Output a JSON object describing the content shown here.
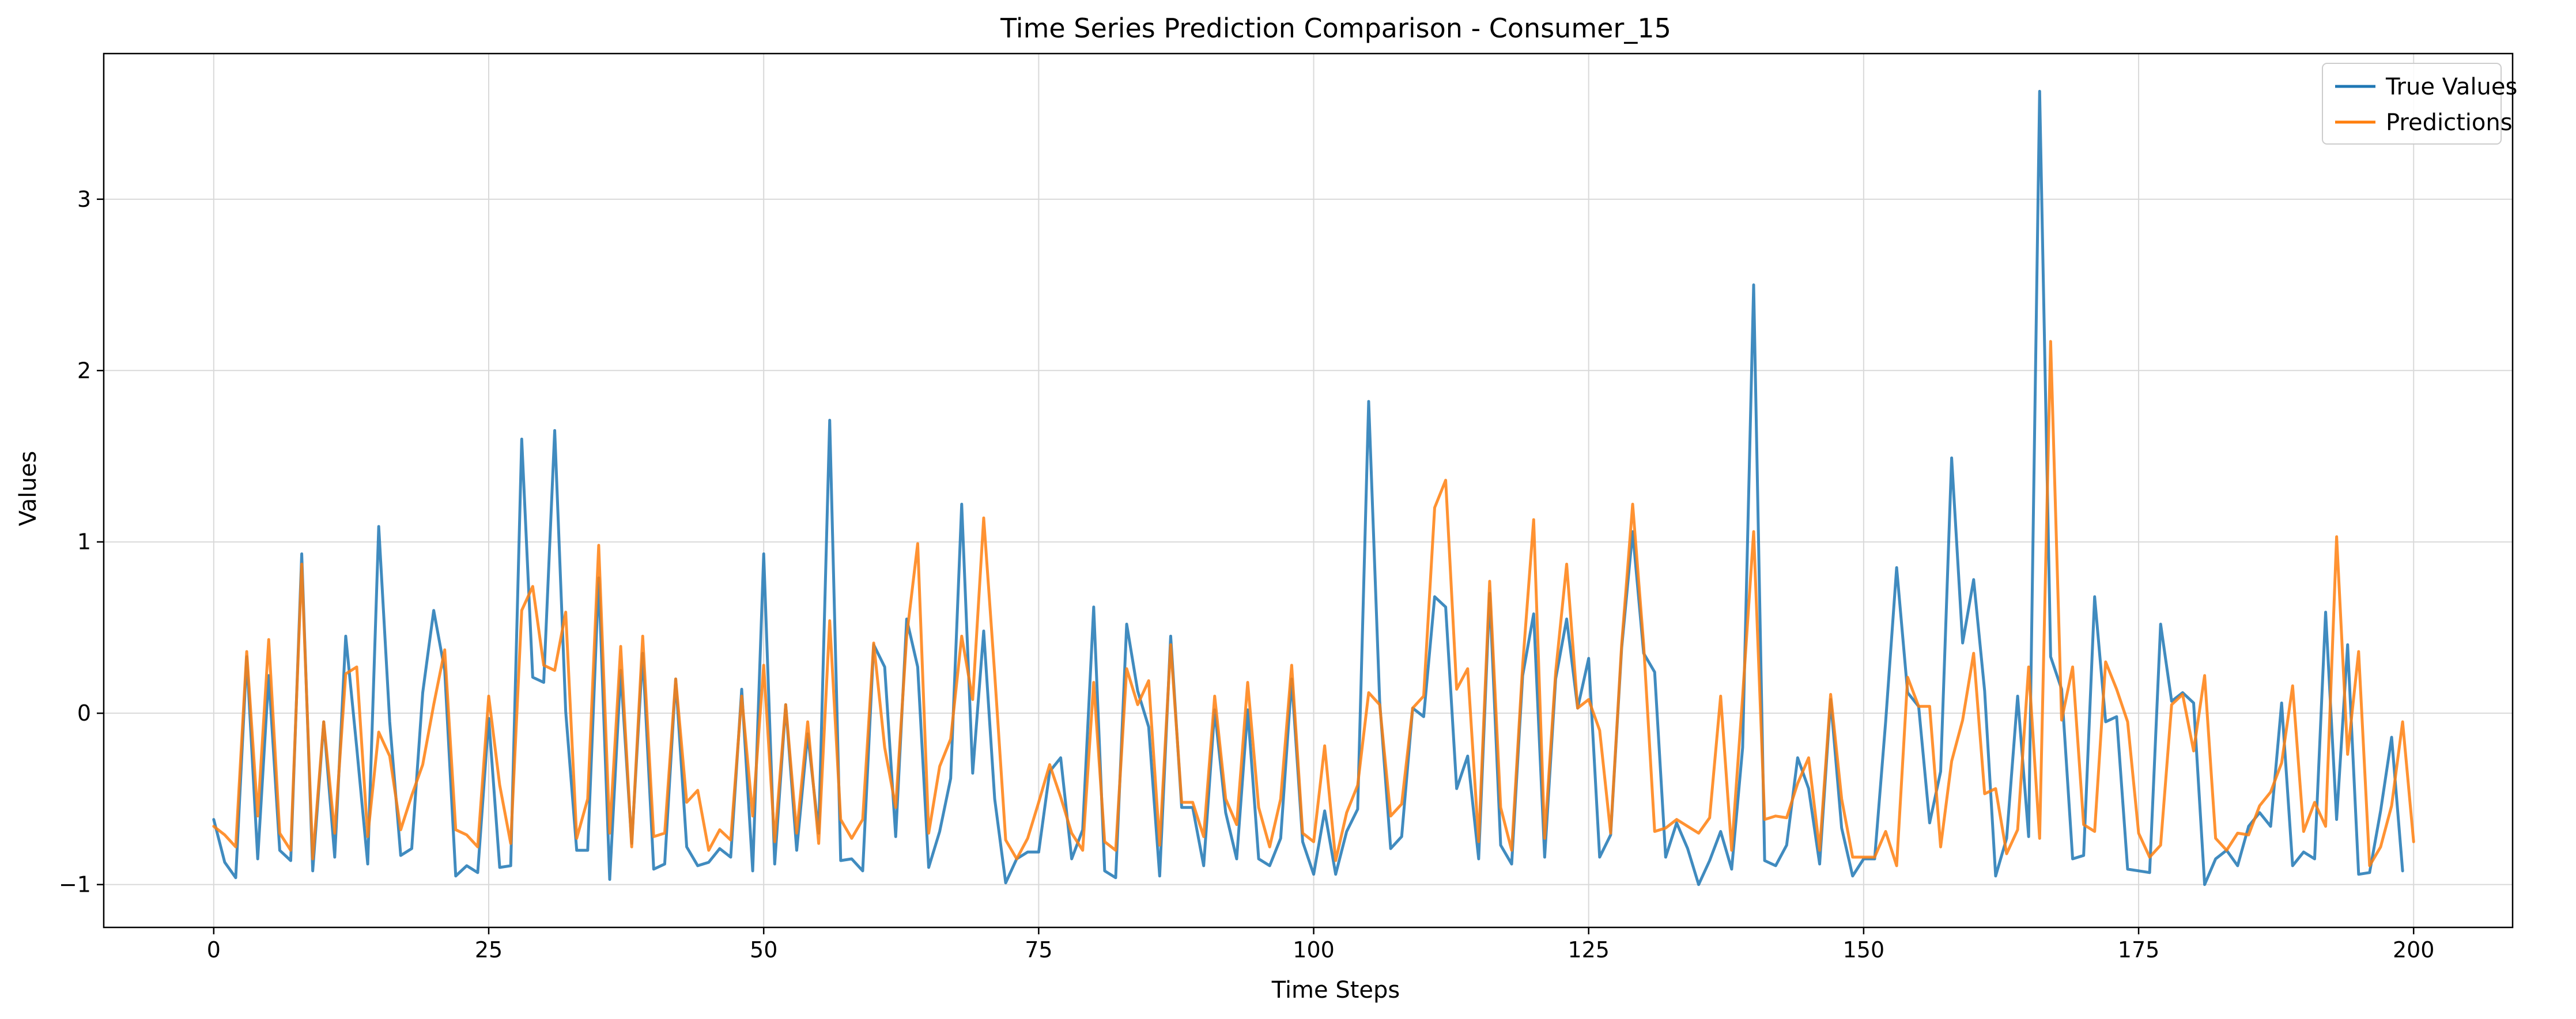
{
  "chart_data": {
    "type": "line",
    "title": "Time Series Prediction Comparison - Consumer_15",
    "xlabel": "Time Steps",
    "ylabel": "Values",
    "xlim": [
      -10,
      209
    ],
    "ylim": [
      -1.25,
      3.85
    ],
    "xticks": [
      0,
      25,
      50,
      75,
      100,
      125,
      150,
      175,
      200
    ],
    "yticks": [
      -1,
      0,
      1,
      2,
      3
    ],
    "grid": true,
    "legend_position": "top-right",
    "series": [
      {
        "name": "True Values",
        "color": "#1f77b4",
        "values": [
          -0.62,
          -0.87,
          -0.96,
          0.33,
          -0.85,
          0.22,
          -0.8,
          -0.86,
          0.93,
          -0.92,
          -0.05,
          -0.84,
          0.45,
          -0.2,
          -0.88,
          1.09,
          -0.05,
          -0.83,
          -0.79,
          0.12,
          0.6,
          0.25,
          -0.95,
          -0.89,
          -0.93,
          -0.03,
          -0.9,
          -0.89,
          1.6,
          0.21,
          0.18,
          1.65,
          0.01,
          -0.8,
          -0.8,
          0.79,
          -0.97,
          0.25,
          -0.76,
          0.35,
          -0.91,
          -0.88,
          0.2,
          -0.78,
          -0.89,
          -0.87,
          -0.79,
          -0.84,
          0.14,
          -0.92,
          0.93,
          -0.88,
          0.05,
          -0.8,
          -0.12,
          -0.7,
          1.71,
          -0.86,
          -0.85,
          -0.92,
          0.4,
          0.27,
          -0.72,
          0.55,
          0.27,
          -0.9,
          -0.69,
          -0.38,
          1.22,
          -0.35,
          0.48,
          -0.5,
          -0.99,
          -0.85,
          -0.81,
          -0.81,
          -0.34,
          -0.26,
          -0.85,
          -0.68,
          0.62,
          -0.92,
          -0.96,
          0.52,
          0.13,
          -0.08,
          -0.95,
          0.45,
          -0.55,
          -0.55,
          -0.89,
          0.02,
          -0.58,
          -0.85,
          0.02,
          -0.85,
          -0.89,
          -0.73,
          0.2,
          -0.75,
          -0.94,
          -0.57,
          -0.94,
          -0.69,
          -0.56,
          1.82,
          0.07,
          -0.79,
          -0.72,
          0.03,
          -0.02,
          0.68,
          0.62,
          -0.44,
          -0.25,
          -0.85,
          0.7,
          -0.77,
          -0.88,
          0.22,
          0.58,
          -0.84,
          0.2,
          0.55,
          0.03,
          0.32,
          -0.84,
          -0.71,
          0.38,
          1.06,
          0.35,
          0.24,
          -0.84,
          -0.64,
          -0.79,
          -1.0,
          -0.86,
          -0.69,
          -0.91,
          -0.2,
          2.5,
          -0.86,
          -0.89,
          -0.77,
          -0.26,
          -0.44,
          -0.88,
          0.08,
          -0.67,
          -0.95,
          -0.85,
          -0.85,
          -0.05,
          0.85,
          0.12,
          0.04,
          -0.64,
          -0.34,
          1.49,
          0.41,
          0.78,
          0.13,
          -0.95,
          -0.73,
          0.1,
          -0.72,
          3.63,
          0.33,
          0.14,
          -0.85,
          -0.83,
          0.68,
          -0.05,
          -0.02,
          -0.91,
          -0.92,
          -0.93,
          0.52,
          0.07,
          0.12,
          0.06,
          -1.0,
          -0.85,
          -0.8,
          -0.89,
          -0.66,
          -0.58,
          -0.66,
          0.06,
          -0.89,
          -0.81,
          -0.85,
          0.59,
          -0.62,
          0.4,
          -0.94,
          -0.93,
          -0.57,
          -0.14,
          -0.92
        ]
      },
      {
        "name": "Predictions",
        "color": "#ff7f0e",
        "values": [
          -0.66,
          -0.71,
          -0.78,
          0.36,
          -0.6,
          0.43,
          -0.7,
          -0.8,
          0.87,
          -0.85,
          -0.05,
          -0.7,
          0.23,
          0.27,
          -0.72,
          -0.11,
          -0.25,
          -0.68,
          -0.48,
          -0.3,
          0.05,
          0.37,
          -0.68,
          -0.71,
          -0.78,
          0.1,
          -0.42,
          -0.76,
          0.6,
          0.74,
          0.28,
          0.25,
          0.59,
          -0.73,
          -0.5,
          0.98,
          -0.7,
          0.39,
          -0.78,
          0.45,
          -0.72,
          -0.7,
          0.2,
          -0.52,
          -0.45,
          -0.8,
          -0.68,
          -0.74,
          0.1,
          -0.6,
          0.28,
          -0.75,
          0.05,
          -0.7,
          -0.05,
          -0.76,
          0.54,
          -0.62,
          -0.73,
          -0.62,
          0.41,
          -0.2,
          -0.55,
          0.45,
          0.99,
          -0.7,
          -0.31,
          -0.15,
          0.45,
          0.08,
          1.14,
          0.23,
          -0.74,
          -0.85,
          -0.73,
          -0.52,
          -0.3,
          -0.49,
          -0.7,
          -0.8,
          0.18,
          -0.75,
          -0.8,
          0.26,
          0.05,
          0.19,
          -0.77,
          0.4,
          -0.52,
          -0.52,
          -0.72,
          0.1,
          -0.5,
          -0.65,
          0.18,
          -0.55,
          -0.78,
          -0.5,
          0.28,
          -0.7,
          -0.75,
          -0.19,
          -0.86,
          -0.58,
          -0.42,
          0.12,
          0.05,
          -0.6,
          -0.53,
          0.03,
          0.1,
          1.2,
          1.36,
          0.14,
          0.26,
          -0.75,
          0.77,
          -0.55,
          -0.8,
          0.28,
          1.13,
          -0.73,
          0.24,
          0.87,
          0.03,
          0.08,
          -0.1,
          -0.7,
          0.4,
          1.22,
          0.4,
          -0.69,
          -0.67,
          -0.62,
          -0.66,
          -0.7,
          -0.61,
          0.1,
          -0.8,
          0.1,
          1.06,
          -0.62,
          -0.6,
          -0.61,
          -0.41,
          -0.26,
          -0.8,
          0.11,
          -0.5,
          -0.84,
          -0.84,
          -0.84,
          -0.69,
          -0.89,
          0.21,
          0.04,
          0.04,
          -0.78,
          -0.28,
          -0.04,
          0.35,
          -0.47,
          -0.44,
          -0.82,
          -0.68,
          0.27,
          -0.73,
          2.17,
          -0.04,
          0.27,
          -0.65,
          -0.69,
          0.3,
          0.14,
          -0.05,
          -0.7,
          -0.84,
          -0.77,
          0.05,
          0.11,
          -0.22,
          0.22,
          -0.73,
          -0.8,
          -0.7,
          -0.71,
          -0.54,
          -0.46,
          -0.29,
          0.16,
          -0.69,
          -0.52,
          -0.66,
          1.03,
          -0.24,
          0.36,
          -0.89,
          -0.78,
          -0.54,
          -0.05,
          -0.75
        ]
      }
    ]
  }
}
